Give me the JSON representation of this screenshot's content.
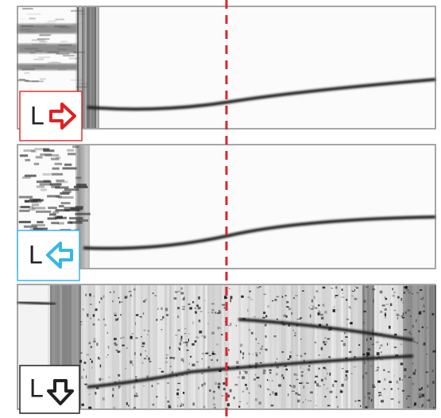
{
  "panels": [
    {
      "label": "L"
    },
    {
      "label": "L"
    },
    {
      "label": "L"
    }
  ]
}
